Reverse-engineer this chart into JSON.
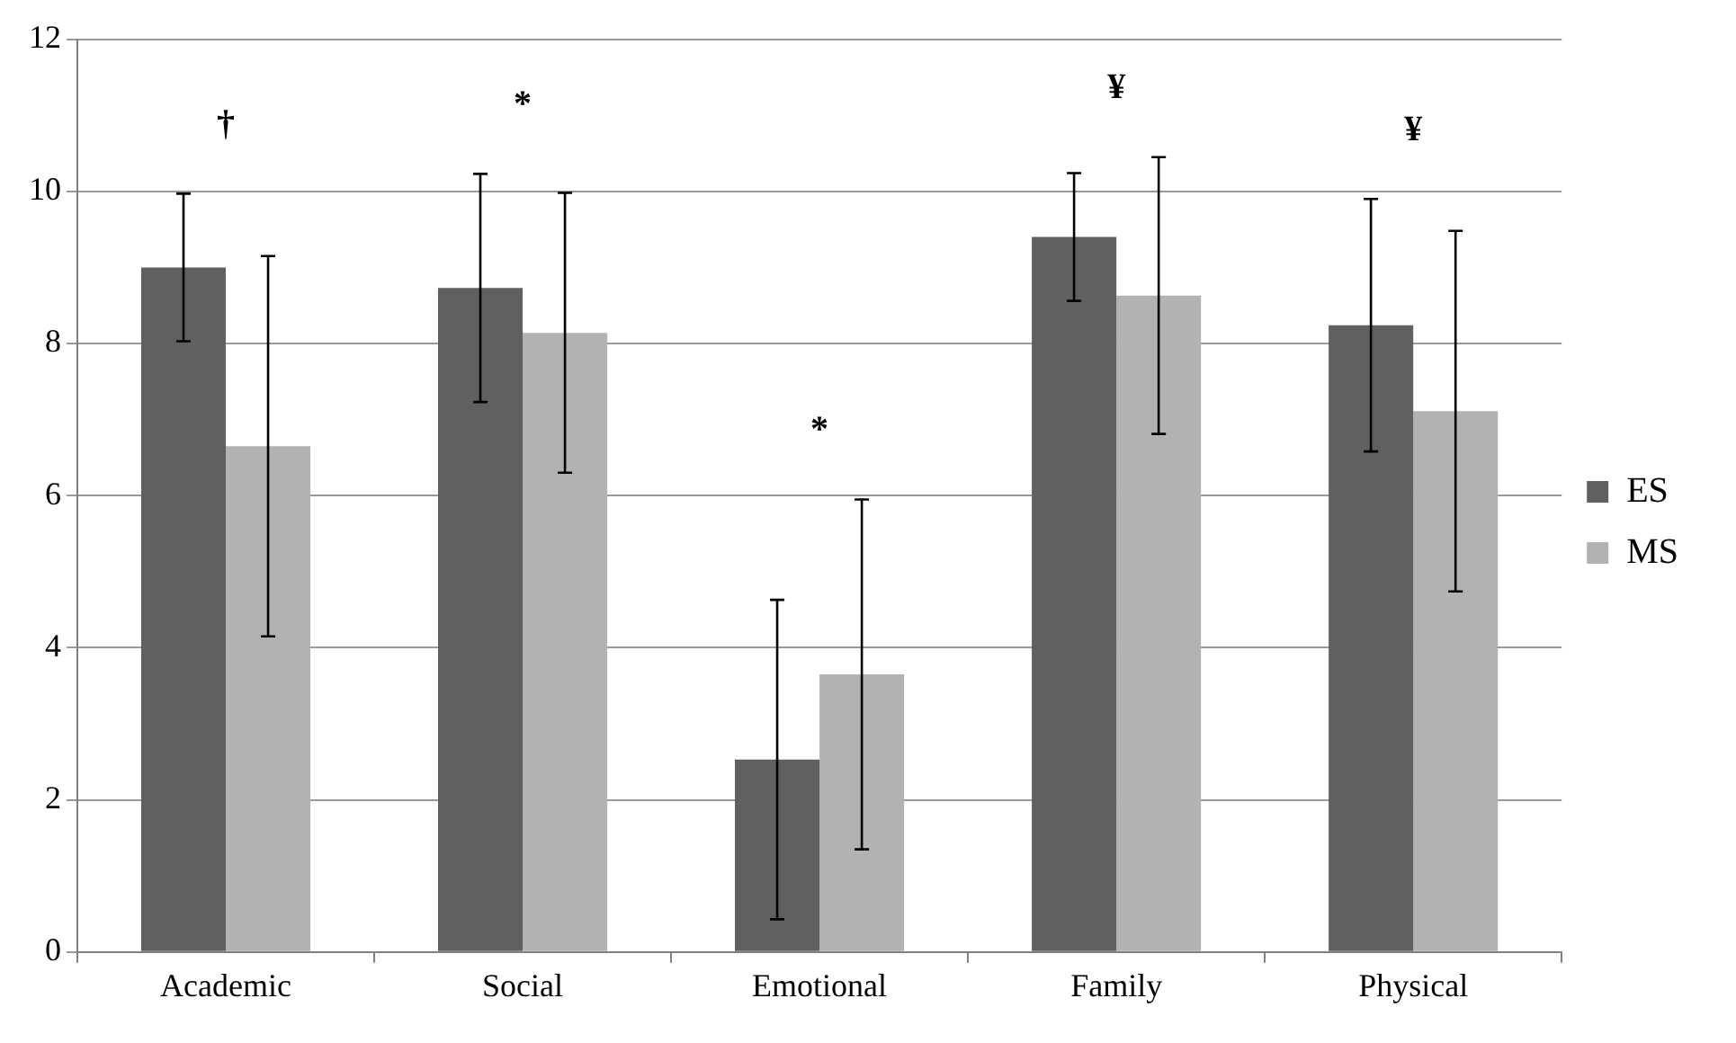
{
  "chart_data": {
    "type": "bar",
    "categories": [
      "Academic",
      "Social",
      "Emotional",
      "Family",
      "Physical"
    ],
    "series": [
      {
        "name": "ES",
        "color": "#606060",
        "values": [
          9.0,
          8.73,
          2.53,
          9.4,
          8.24
        ],
        "errors": [
          0.97,
          1.5,
          2.1,
          0.84,
          1.66
        ]
      },
      {
        "name": "MS",
        "color": "#b2b2b2",
        "values": [
          6.65,
          8.14,
          3.65,
          8.63,
          7.11
        ],
        "errors": [
          2.5,
          1.84,
          2.3,
          1.82,
          2.37
        ]
      }
    ],
    "ylim": [
      0,
      12
    ],
    "yticks": [
      0,
      2,
      4,
      6,
      8,
      10,
      12
    ],
    "grid": "y",
    "legend": "right",
    "annotations": [
      "†",
      "*",
      "*",
      "¥",
      "¥"
    ]
  }
}
